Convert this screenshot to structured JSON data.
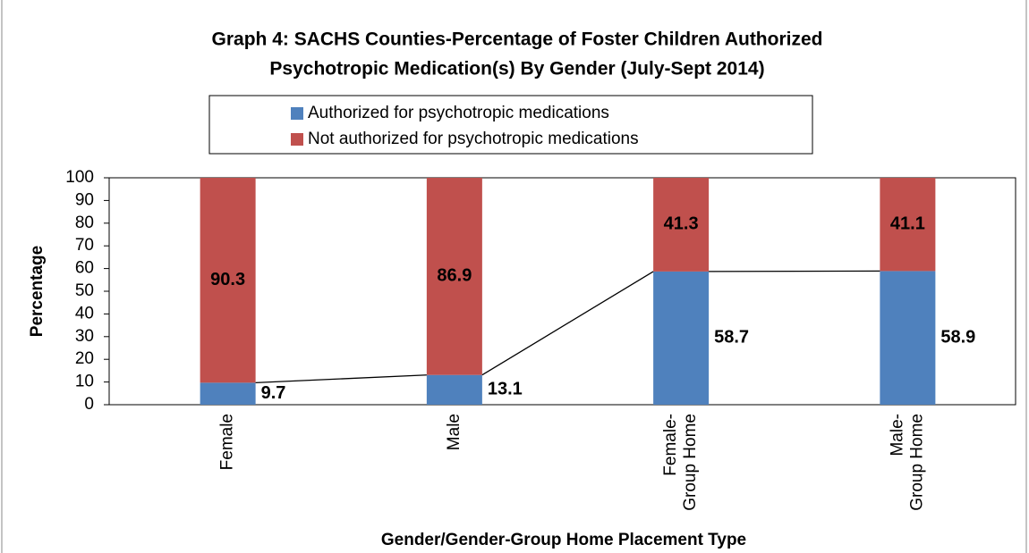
{
  "chart_data": {
    "type": "stacked_bar",
    "title": "Graph 4: SACHS Counties-Percentage of Foster Children Authorized",
    "subtitle": "Psychotropic Medication(s) By Gender (July-Sept 2014)",
    "x_label": "Gender/Gender-Group Home Placement Type",
    "y_label": "Percentage",
    "categories": [
      "Female",
      "Male",
      "Female-\nGroup Home",
      "Male-\nGroup Home"
    ],
    "series": [
      {
        "name": "Authorized for psychotropic medications",
        "color": "#4f81bd",
        "values": [
          9.7,
          13.1,
          58.7,
          58.9
        ]
      },
      {
        "name": "Not authorized for psychotropic medications",
        "color": "#c0504d",
        "values": [
          90.3,
          86.9,
          41.3,
          41.1
        ]
      }
    ],
    "ylim": [
      0,
      100
    ],
    "yticks": [
      0,
      10,
      20,
      30,
      40,
      50,
      60,
      70,
      80,
      90,
      100
    ],
    "legend": "top",
    "grid": false
  }
}
